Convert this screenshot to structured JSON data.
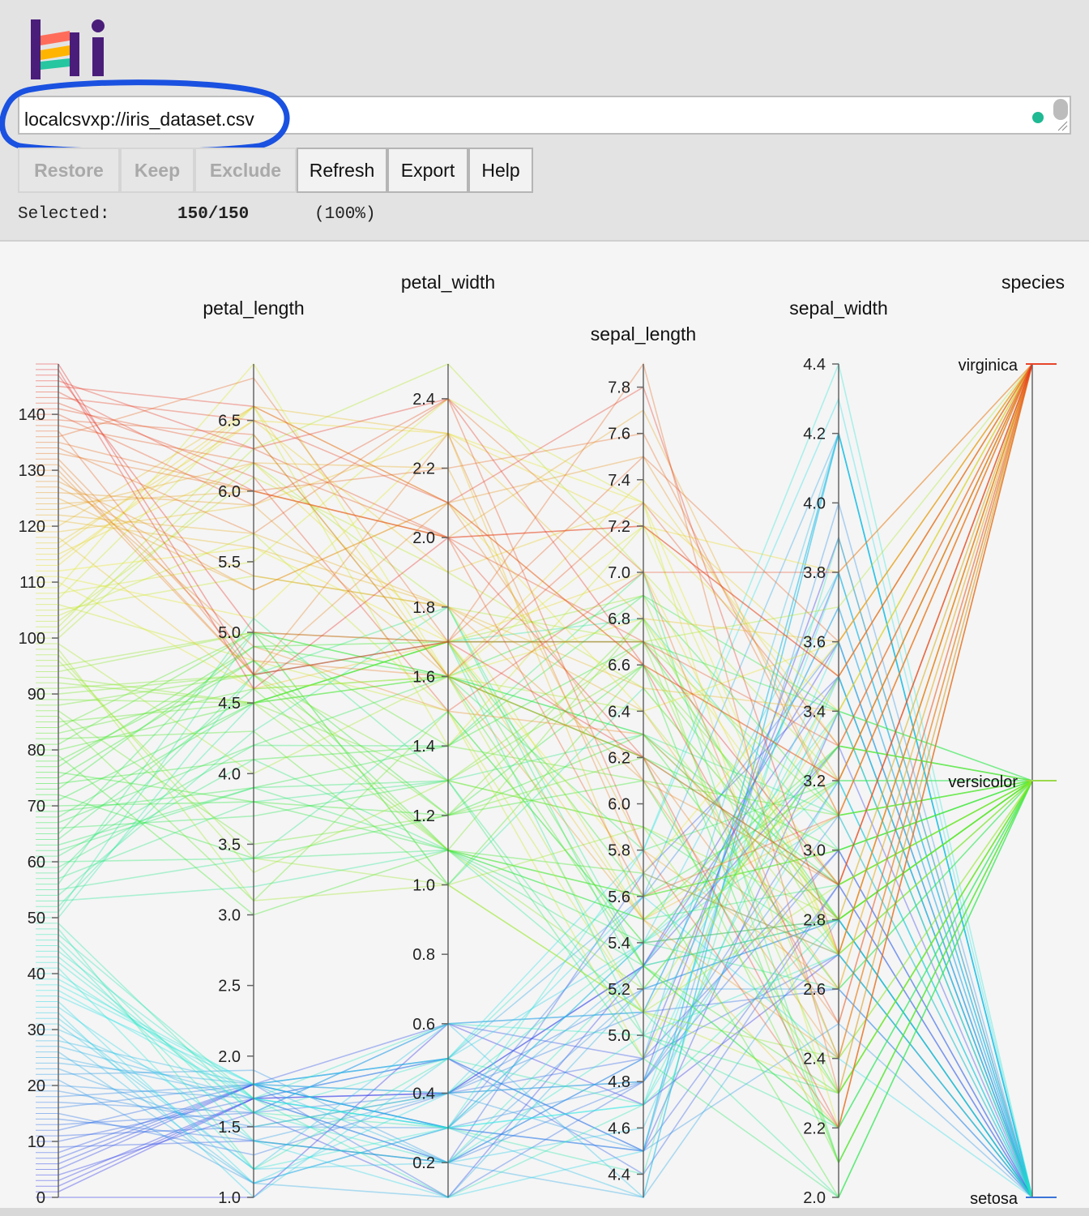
{
  "app": {
    "logo_text": "Hi"
  },
  "source": {
    "value": "localcsvxp://iris_dataset.csv"
  },
  "toolbar": {
    "buttons": [
      {
        "label": "Restore",
        "enabled": false
      },
      {
        "label": "Keep",
        "enabled": false
      },
      {
        "label": "Exclude",
        "enabled": false
      },
      {
        "label": "Refresh",
        "enabled": true
      },
      {
        "label": "Export",
        "enabled": true
      },
      {
        "label": "Help",
        "enabled": true
      }
    ]
  },
  "selection": {
    "label": "Selected:",
    "count": "150/150",
    "percent": "(100%)"
  },
  "colors": {
    "header_bg": "#e3e3e3",
    "highlight_ring": "#1a51e0",
    "status_ok": "#1fb993",
    "species_virginica": "#e8452a",
    "species_versicolor": "#9ad94a",
    "species_setosa": "#3b74d8"
  },
  "chart_data": {
    "type": "parallel_coordinates",
    "rows": 150,
    "axes": [
      {
        "name": "",
        "kind": "numeric",
        "range": [
          0,
          149
        ],
        "ticks": [
          "0",
          "10",
          "20",
          "30",
          "40",
          "50",
          "60",
          "70",
          "80",
          "90",
          "100",
          "110",
          "120",
          "130",
          "140"
        ]
      },
      {
        "name": "petal_length",
        "kind": "numeric",
        "range": [
          1.0,
          6.9
        ],
        "ticks": [
          "1.0",
          "1.5",
          "2.0",
          "2.5",
          "3.0",
          "3.5",
          "4.0",
          "4.5",
          "5.0",
          "5.5",
          "6.0",
          "6.5"
        ]
      },
      {
        "name": "petal_width",
        "kind": "numeric",
        "range": [
          0.1,
          2.5
        ],
        "ticks": [
          "0.2",
          "0.4",
          "0.6",
          "0.8",
          "1.0",
          "1.2",
          "1.4",
          "1.6",
          "1.8",
          "2.0",
          "2.2",
          "2.4"
        ]
      },
      {
        "name": "sepal_length",
        "kind": "numeric",
        "range": [
          4.3,
          7.9
        ],
        "ticks": [
          "4.4",
          "4.6",
          "4.8",
          "5.0",
          "5.2",
          "5.4",
          "5.6",
          "5.8",
          "6.0",
          "6.2",
          "6.4",
          "6.6",
          "6.8",
          "7.0",
          "7.2",
          "7.4",
          "7.6",
          "7.8"
        ]
      },
      {
        "name": "sepal_width",
        "kind": "numeric",
        "range": [
          2.0,
          4.4
        ],
        "ticks": [
          "2.0",
          "2.2",
          "2.4",
          "2.6",
          "2.8",
          "3.0",
          "3.2",
          "3.4",
          "3.6",
          "3.8",
          "4.0",
          "4.2",
          "4.4"
        ]
      },
      {
        "name": "species",
        "kind": "categorical",
        "categories": [
          "setosa",
          "versicolor",
          "virginica"
        ]
      }
    ],
    "species_profiles": {
      "setosa": {
        "petal_length": [
          1.0,
          1.9
        ],
        "petal_width": [
          0.1,
          0.6
        ],
        "sepal_length": [
          4.3,
          5.8
        ],
        "sepal_width": [
          2.3,
          4.4
        ]
      },
      "versicolor": {
        "petal_length": [
          3.0,
          5.1
        ],
        "petal_width": [
          1.0,
          1.8
        ],
        "sepal_length": [
          4.9,
          7.0
        ],
        "sepal_width": [
          2.0,
          3.4
        ]
      },
      "virginica": {
        "petal_length": [
          4.5,
          6.9
        ],
        "petal_width": [
          1.4,
          2.5
        ],
        "sepal_length": [
          4.9,
          7.9
        ],
        "sepal_width": [
          2.2,
          3.8
        ]
      }
    },
    "colormap": "rainbow by row index (blue → green → yellow → red)",
    "line_opacity": 0.35
  }
}
